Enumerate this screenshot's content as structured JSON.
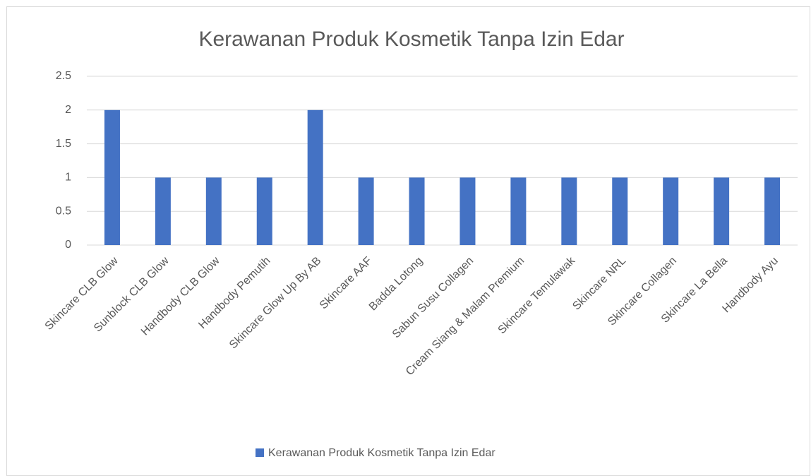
{
  "chart_data": {
    "type": "bar",
    "title": "Kerawanan Produk Kosmetik Tanpa Izin Edar",
    "categories": [
      "Skincare CLB Glow",
      "Sunblock CLB Glow",
      "Handbody CLB Glow",
      "Handbody Pemutih",
      "Skincare Glow Up By AB",
      "Skincare AAF",
      "Badda Lotong",
      "Sabun Susu Collagen",
      "Cream Siang & Malam Premium",
      "Skincare Temulawak",
      "Skincare NRL",
      "Skincare Collagen",
      "Skincare La Bella",
      "Handbody Ayu"
    ],
    "series": [
      {
        "name": "Kerawanan Produk Kosmetik Tanpa Izin Edar",
        "color": "#4472c4",
        "values": [
          2,
          1,
          1,
          1,
          2,
          1,
          1,
          1,
          1,
          1,
          1,
          1,
          1,
          1
        ]
      }
    ],
    "ylim": [
      0,
      2.5
    ],
    "yticks": [
      0,
      0.5,
      1,
      1.5,
      2,
      2.5
    ],
    "grid": true,
    "legend": "bottom"
  }
}
